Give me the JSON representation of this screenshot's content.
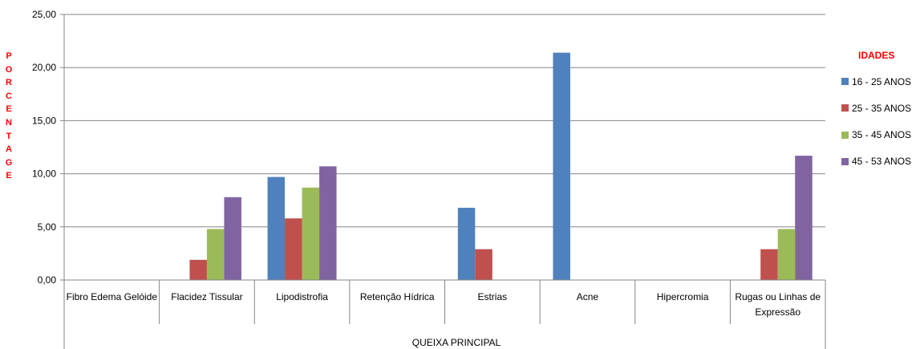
{
  "chart_data": {
    "type": "bar",
    "xlabel": "QUEIXA PRINCIPAL",
    "ylabel": "PORCENTAGE",
    "ylim": [
      0,
      25
    ],
    "yticks": [
      "0,00",
      "5,00",
      "10,00",
      "15,00",
      "20,00",
      "25,00"
    ],
    "grid": true,
    "legend_title": "IDADES",
    "legend_position": "right",
    "categories": [
      "Fibro Edema Gelóide",
      "Flacidez Tissular",
      "Lipodistrofia",
      "Retenção Hídrica",
      "Estrias",
      "Acne",
      "Hipercromia",
      "Rugas ou Linhas de Expressão"
    ],
    "series": [
      {
        "name": "16 - 25 ANOS",
        "color": "#4f81bd",
        "values": [
          0,
          0,
          9.7,
          0,
          6.8,
          21.4,
          0,
          0
        ]
      },
      {
        "name": "25 - 35 ANOS",
        "color": "#c0504d",
        "values": [
          0,
          1.9,
          5.8,
          0,
          2.9,
          0,
          0,
          2.9
        ]
      },
      {
        "name": "35 - 45 ANOS",
        "color": "#9bbb59",
        "values": [
          0,
          4.8,
          8.7,
          0,
          0,
          0,
          0,
          4.8
        ]
      },
      {
        "name": "45 - 53 ANOS",
        "color": "#8064a2",
        "values": [
          0,
          7.8,
          10.7,
          0,
          0,
          0,
          0,
          11.7
        ]
      }
    ]
  }
}
